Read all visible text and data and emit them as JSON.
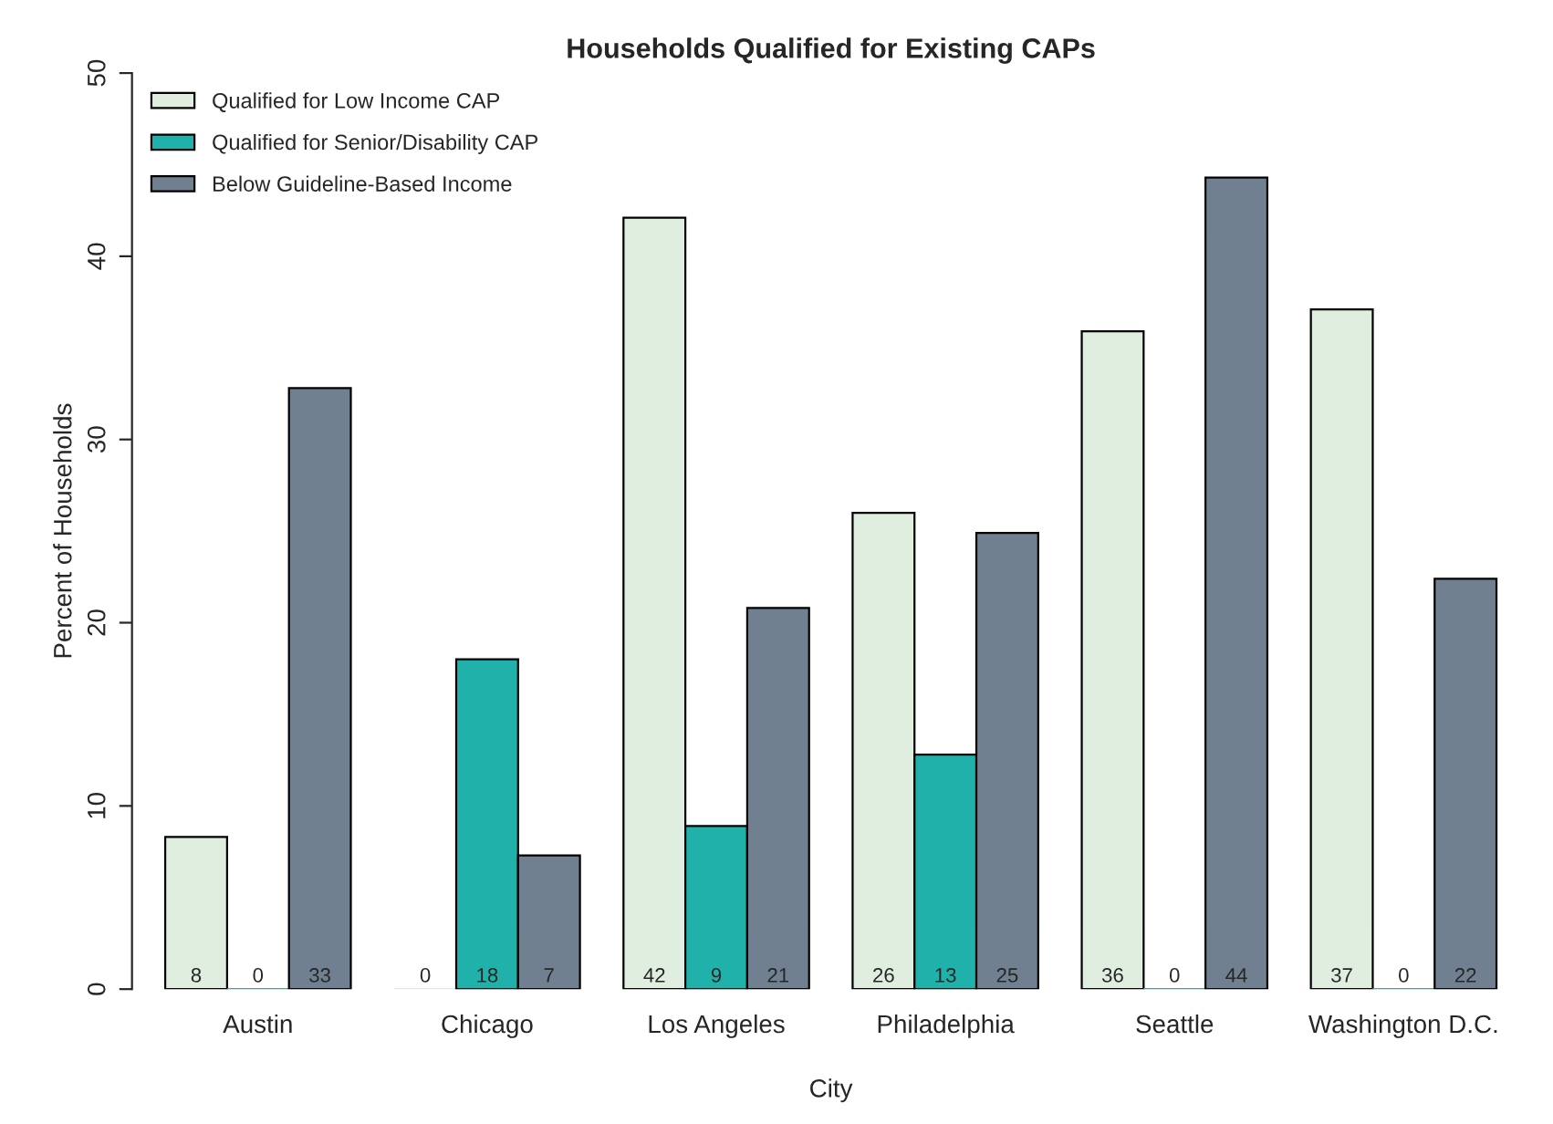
{
  "chart_data": {
    "type": "bar",
    "title": "Households Qualified for Existing CAPs",
    "xlabel": "City",
    "ylabel": "Percent of Households",
    "categories": [
      "Austin",
      "Chicago",
      "Los Angeles",
      "Philadelphia",
      "Seattle",
      "Washington D.C."
    ],
    "series": [
      {
        "name": "Qualified for Low Income CAP",
        "color": "#dfeedf",
        "values": [
          8.3,
          0,
          42.1,
          26.0,
          35.9,
          37.1
        ],
        "value_labels": [
          "8",
          "0",
          "42",
          "26",
          "36",
          "37"
        ]
      },
      {
        "name": "Qualified for Senior/Disability CAP",
        "color": "#20b2aa",
        "values": [
          0,
          18.0,
          8.9,
          12.8,
          0,
          0
        ],
        "value_labels": [
          "0",
          "18",
          "9",
          "13",
          "0",
          "0"
        ]
      },
      {
        "name": "Below Guideline-Based Income",
        "color": "#708090",
        "values": [
          32.8,
          7.3,
          20.8,
          24.9,
          44.3,
          22.4
        ],
        "value_labels": [
          "33",
          "7",
          "21",
          "25",
          "44",
          "22"
        ]
      }
    ],
    "ylim": [
      0,
      50
    ],
    "yticks": [
      0,
      10,
      20,
      30,
      40,
      50
    ],
    "grid": false,
    "legend": "top left"
  }
}
